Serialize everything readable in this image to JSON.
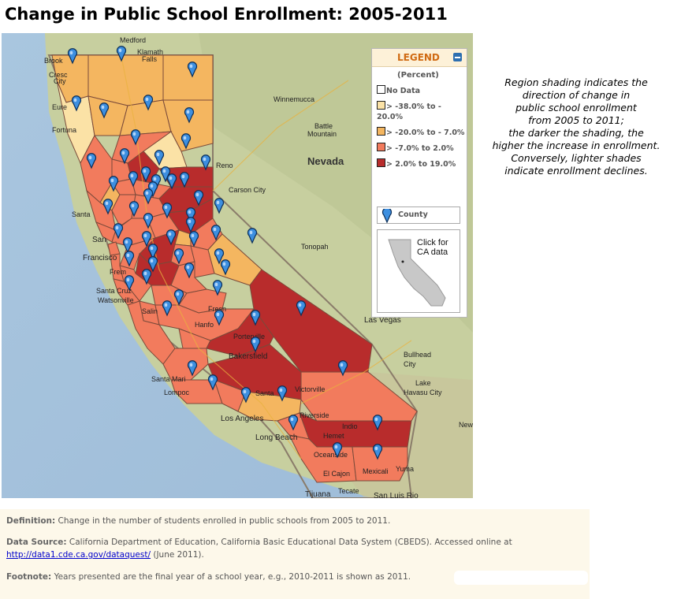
{
  "title": "Change in Public School Enrollment: 2005-2011",
  "legend": {
    "title": "LEGEND",
    "subtitle": "(Percent)",
    "items": [
      {
        "label": "No Data",
        "color": "#ffffff"
      },
      {
        "label": "> -38.0% to - 20.0%",
        "color": "#fbe2a6"
      },
      {
        "label": "> -20.0% to - 7.0%",
        "color": "#f4b660"
      },
      {
        "label": "> -7.0% to 2.0%",
        "color": "#f27b5d"
      },
      {
        "label": "> 2.0% to 19.0%",
        "color": "#b82c2c"
      }
    ],
    "county_label": "County",
    "ca_link_text": "Click for CA data"
  },
  "side_note": [
    "Region shading indicates the",
    "direction of change in",
    "public school enrollment",
    "from 2005 to 2011;",
    "the darker the shading, the",
    "higher the increase in enrollment.",
    "Conversely, lighter shades",
    "indicate enrollment declines."
  ],
  "cities": [
    {
      "name": "Medford"
    },
    {
      "name": "Klamath"
    },
    {
      "name": "Falls"
    },
    {
      "name": "Brook"
    },
    {
      "name": "Cresc"
    },
    {
      "name": "City"
    },
    {
      "name": "Eure"
    },
    {
      "name": "Fortuna"
    },
    {
      "name": "Winnemucca"
    },
    {
      "name": "Battle"
    },
    {
      "name": "Mountain"
    },
    {
      "name": "Nevada"
    },
    {
      "name": "Reno"
    },
    {
      "name": "Carson City"
    },
    {
      "name": "Santa"
    },
    {
      "name": "San"
    },
    {
      "name": "Francisco"
    },
    {
      "name": "Frem"
    },
    {
      "name": "Santa Cruz"
    },
    {
      "name": "Watsonville"
    },
    {
      "name": "Salin"
    },
    {
      "name": "Tonopah"
    },
    {
      "name": "Fresn"
    },
    {
      "name": "Hanfo"
    },
    {
      "name": "Porterville"
    },
    {
      "name": "Las Vegas"
    },
    {
      "name": "Bakersfield"
    },
    {
      "name": "Bullhead"
    },
    {
      "name": "City"
    },
    {
      "name": "Santa Mari"
    },
    {
      "name": "Lompoc"
    },
    {
      "name": "Santa"
    },
    {
      "name": "Victorville"
    },
    {
      "name": "Lake"
    },
    {
      "name": "Havasu City"
    },
    {
      "name": "Los Angeles"
    },
    {
      "name": "Riverside"
    },
    {
      "name": "Long Beach"
    },
    {
      "name": "Indio"
    },
    {
      "name": "Hemet"
    },
    {
      "name": "Oceanside"
    },
    {
      "name": "El Cajon"
    },
    {
      "name": "Mexicali"
    },
    {
      "name": "Yuma"
    },
    {
      "name": "New"
    },
    {
      "name": "Tijuana"
    },
    {
      "name": "Tecate"
    },
    {
      "name": "San Luis Rio"
    }
  ],
  "counties": [
    {
      "color": "#f4b660"
    },
    {
      "color": "#f4b660"
    },
    {
      "color": "#f4b660"
    },
    {
      "color": "#fbe2a6"
    },
    {
      "color": "#f4b660"
    },
    {
      "color": "#f4b660"
    },
    {
      "color": "#f4b660"
    },
    {
      "color": "#fbe2a6"
    },
    {
      "color": "#f27b5d"
    },
    {
      "color": "#f27b5d"
    },
    {
      "color": "#b82c2c"
    },
    {
      "color": "#b82c2c"
    },
    {
      "color": "#f27b5d"
    },
    {
      "color": "#f4b660"
    },
    {
      "color": "#f27b5d"
    },
    {
      "color": "#f27b5d"
    },
    {
      "color": "#f27b5d"
    },
    {
      "color": "#b82c2c"
    },
    {
      "color": "#f27b5d"
    },
    {
      "color": "#f27b5d"
    },
    {
      "color": "#f27b5d"
    },
    {
      "color": "#b82c2c"
    },
    {
      "color": "#f27b5d"
    },
    {
      "color": "#f27b5d"
    },
    {
      "color": "#f27b5d"
    },
    {
      "color": "#f4b660"
    },
    {
      "color": "#f27b5d"
    },
    {
      "color": "#b82c2c"
    },
    {
      "color": "#f27b5d"
    },
    {
      "color": "#f27b5d"
    },
    {
      "color": "#f27b5d"
    },
    {
      "color": "#f4b660"
    },
    {
      "color": "#f27b5d"
    },
    {
      "color": "#b82c2c"
    },
    {
      "color": "#f27b5d"
    },
    {
      "color": "#f27b5d"
    },
    {
      "color": "#f27b5d"
    },
    {
      "color": "#f27b5d"
    }
  ],
  "notes": {
    "definition_label": "Definition:",
    "definition": "Change in the number of students enrolled in public schools from 2005 to 2011.",
    "source_label": "Data Source:",
    "source": "California Department of Education, California Basic Educational Data System (CBEDS). Accessed online at",
    "source_link": "http://data1.cde.ca.gov/dataquest/",
    "source_date": "(June 2011).",
    "footnote_label": "Footnote:",
    "footnote": "Years presented are the final year of a school year, e.g., 2010-2011 is shown as 2011."
  }
}
